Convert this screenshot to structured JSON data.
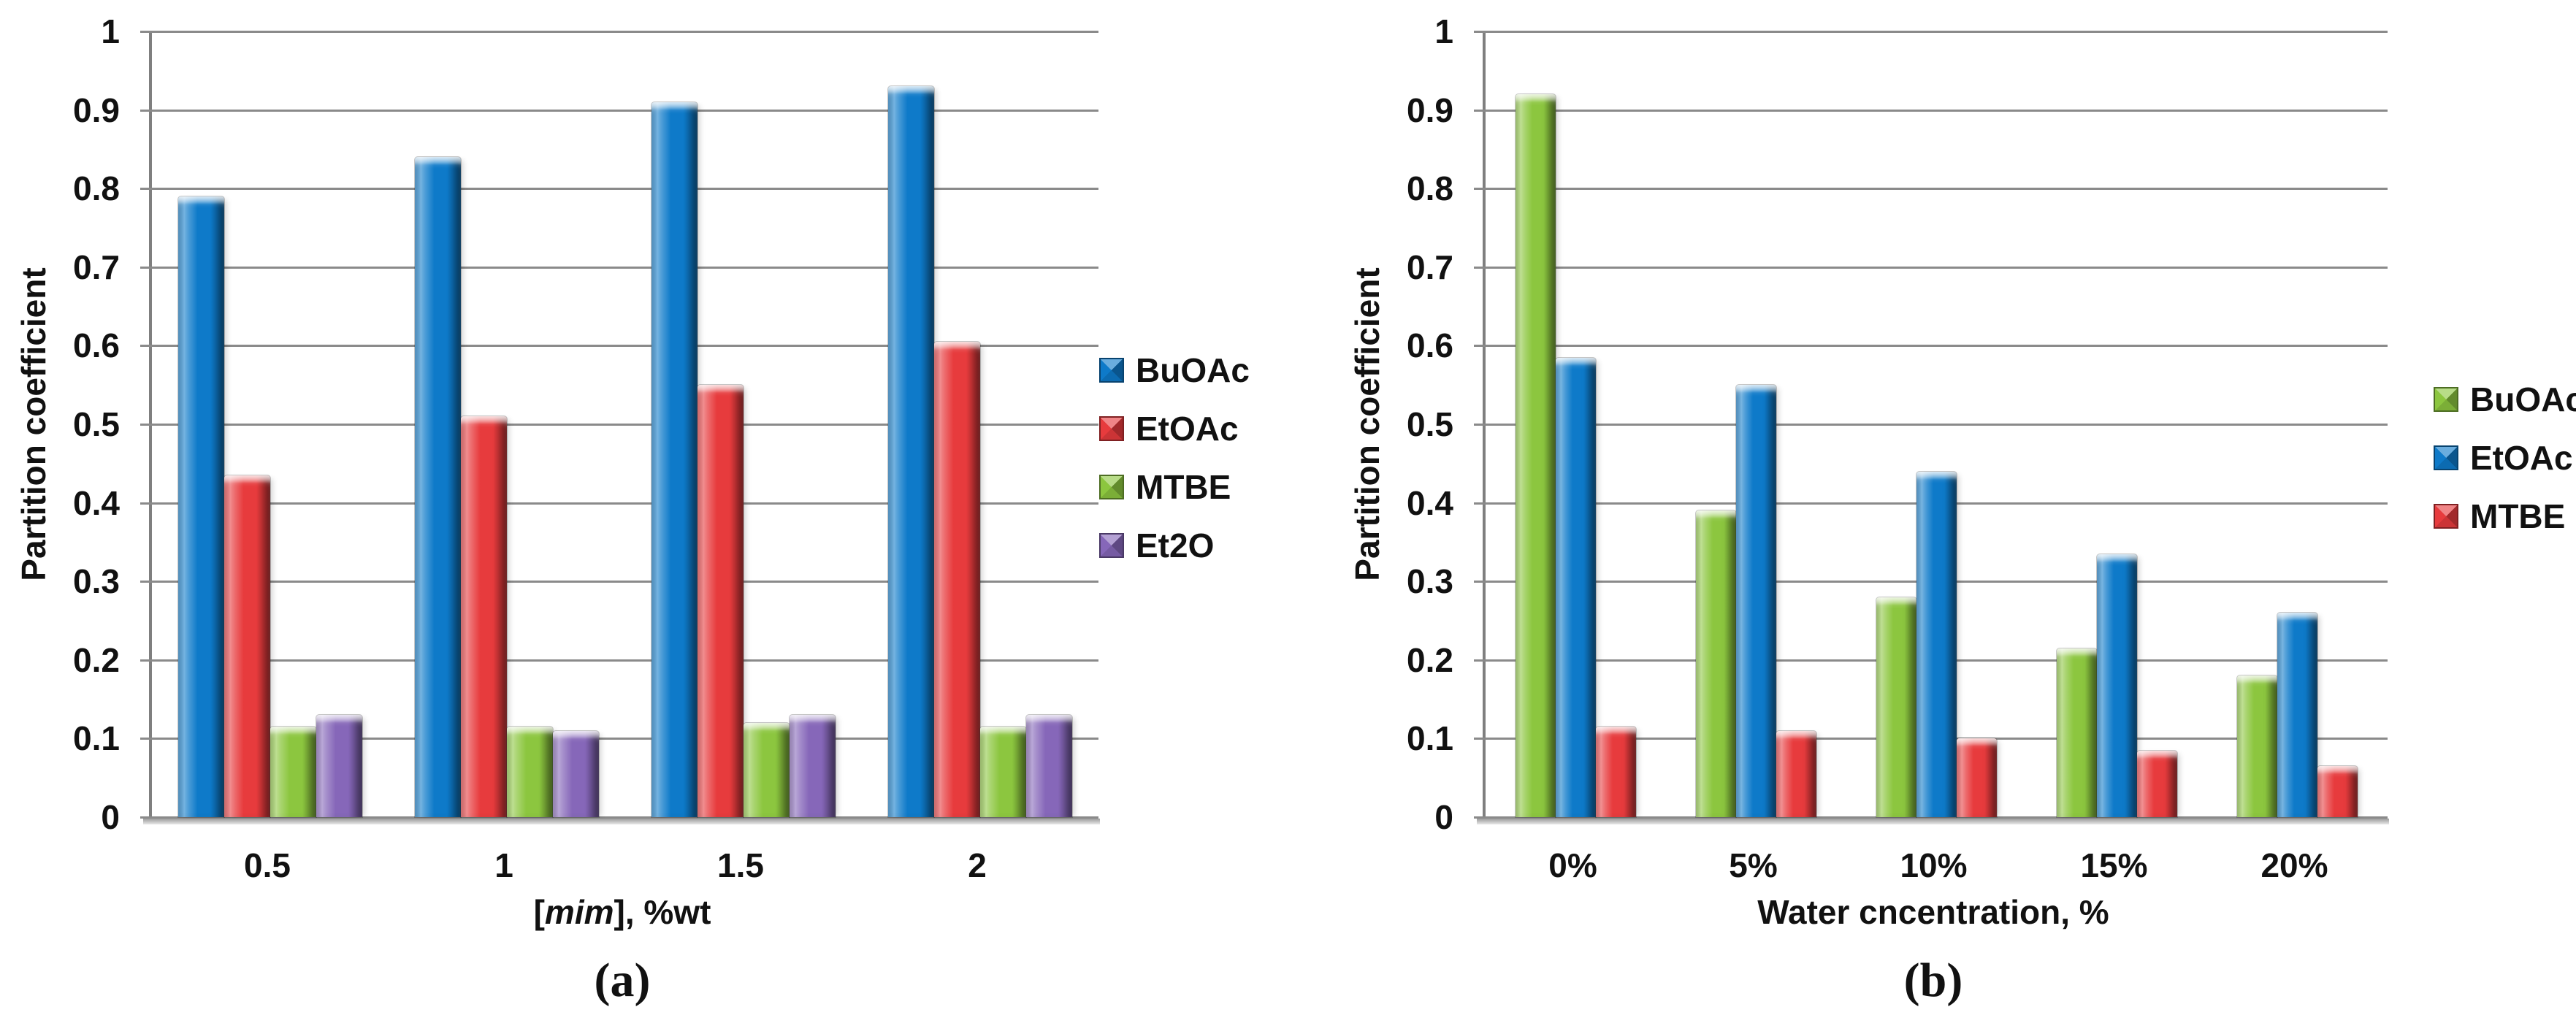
{
  "page": {
    "background": "#ffffff"
  },
  "colors": {
    "gridline": "#8a8a8a",
    "axis_line": "#7f7f7f",
    "text": "#111111"
  },
  "chart_data": [
    {
      "id": "a",
      "type": "bar",
      "caption": "(a)",
      "ylabel": "Partition coefficient",
      "xlabel": "[mim], %wt",
      "xlabel_parts": [
        {
          "text": "[",
          "italic": false
        },
        {
          "text": "mim",
          "italic": true
        },
        {
          "text": "], %wt",
          "italic": false
        }
      ],
      "categories": [
        "0.5",
        "1",
        "1.5",
        "2"
      ],
      "series": [
        {
          "name": "BuOAc",
          "color": "#0e7ac9",
          "values": [
            0.79,
            0.84,
            0.91,
            0.93
          ]
        },
        {
          "name": "EtOAc",
          "color": "#e73b3d",
          "values": [
            0.435,
            0.51,
            0.55,
            0.605
          ]
        },
        {
          "name": "MTBE",
          "color": "#8cc63f",
          "values": [
            0.115,
            0.115,
            0.12,
            0.115
          ]
        },
        {
          "name": "Et2O",
          "color": "#8667b9",
          "values": [
            0.13,
            0.11,
            0.13,
            0.13
          ]
        }
      ],
      "ylim": [
        0,
        1
      ],
      "ytick_step": 0.1,
      "yticks": [
        "1",
        "0.9",
        "0.8",
        "0.7",
        "0.6",
        "0.5",
        "0.4",
        "0.3",
        "0.2",
        "0.1",
        "0"
      ],
      "grid": true,
      "legend_position": "right"
    },
    {
      "id": "b",
      "type": "bar",
      "caption": "(b)",
      "ylabel": "Partition coefficient",
      "xlabel": "Water cncentration, %",
      "xlabel_parts": [
        {
          "text": "Water cncentration, %",
          "italic": false
        }
      ],
      "categories": [
        "0%",
        "5%",
        "10%",
        "15%",
        "20%"
      ],
      "series": [
        {
          "name": "BuOAc",
          "color": "#8cc63f",
          "values": [
            0.92,
            0.39,
            0.28,
            0.215,
            0.18
          ]
        },
        {
          "name": "EtOAc",
          "color": "#0e7ac9",
          "values": [
            0.585,
            0.55,
            0.44,
            0.335,
            0.26
          ]
        },
        {
          "name": "MTBE",
          "color": "#e73b3d",
          "values": [
            0.115,
            0.11,
            0.1,
            0.085,
            0.065
          ]
        }
      ],
      "ylim": [
        0,
        1
      ],
      "ytick_step": 0.1,
      "yticks": [
        "1",
        "0.9",
        "0.8",
        "0.7",
        "0.6",
        "0.5",
        "0.4",
        "0.3",
        "0.2",
        "0.1",
        "0"
      ],
      "grid": true,
      "legend_position": "right"
    }
  ]
}
